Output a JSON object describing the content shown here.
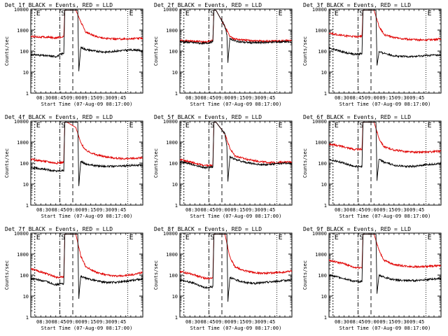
{
  "chart_data": [
    {
      "type": "line",
      "title": "Det 1f BLACK = Events, RED = LLD",
      "xlabel": "Start Time (07-Aug-09 08:17:00)",
      "ylabel": "Counts/sec",
      "yscale": "log",
      "ylim": [
        1,
        10000
      ],
      "x_ticks": [
        "08:30",
        "08:45",
        "09:00",
        "09:15",
        "09:30",
        "09:45"
      ],
      "y_ticks": [
        "1",
        "10",
        "100",
        "1000",
        "10000"
      ],
      "markers": [
        "E",
        "S",
        "E"
      ],
      "series": [
        {
          "name": "Events",
          "color": "#000000",
          "x": [
            0,
            15,
            25,
            33,
            34,
            36,
            45,
            47,
            48,
            50,
            55,
            65,
            75,
            85,
            95,
            105,
            112
          ],
          "y": [
            70,
            60,
            55,
            80,
            9000,
            9000,
            9000,
            9000,
            10,
            150,
            120,
            100,
            90,
            100,
            110,
            115,
            100
          ]
        },
        {
          "name": "LLD",
          "color": "#e00000",
          "x": [
            0,
            15,
            25,
            33,
            34,
            36,
            45,
            50,
            55,
            65,
            75,
            85,
            95,
            105,
            112
          ],
          "y": [
            500,
            460,
            430,
            480,
            9000,
            9000,
            9000,
            2500,
            800,
            500,
            400,
            380,
            380,
            400,
            420
          ]
        }
      ]
    },
    {
      "type": "line",
      "title": "Det 2f BLACK = Events, RED = LLD",
      "xlabel": "Start Time (07-Aug-09 08:17:00)",
      "ylabel": "Counts/sec",
      "yscale": "log",
      "ylim": [
        1,
        10000
      ],
      "x_ticks": [
        "08:30",
        "08:45",
        "09:00",
        "09:15",
        "09:30",
        "09:45"
      ],
      "y_ticks": [
        "1",
        "10",
        "100",
        "1000",
        "10000"
      ],
      "markers": [
        "E",
        "S",
        "E"
      ],
      "series": [
        {
          "name": "Events",
          "color": "#000000",
          "x": [
            0,
            15,
            25,
            33,
            34,
            36,
            45,
            47,
            48,
            50,
            55,
            65,
            75,
            85,
            95,
            105,
            112
          ],
          "y": [
            280,
            250,
            230,
            280,
            9000,
            9000,
            1500,
            600,
            30,
            400,
            300,
            260,
            250,
            260,
            270,
            280,
            260
          ]
        },
        {
          "name": "LLD",
          "color": "#e00000",
          "x": [
            0,
            15,
            25,
            33,
            34,
            36,
            45,
            50,
            55,
            65,
            75,
            85,
            95,
            105,
            112
          ],
          "y": [
            320,
            290,
            270,
            320,
            9000,
            9000,
            1500,
            500,
            380,
            330,
            310,
            300,
            300,
            310,
            320
          ]
        }
      ]
    },
    {
      "type": "line",
      "title": "Det 3f BLACK = Events, RED = LLD",
      "xlabel": "Start Time (07-Aug-09 08:17:00)",
      "ylabel": "Counts/sec",
      "yscale": "log",
      "ylim": [
        1,
        10000
      ],
      "x_ticks": [
        "08:30",
        "08:45",
        "09:00",
        "09:15",
        "09:30",
        "09:45"
      ],
      "y_ticks": [
        "1",
        "10",
        "100",
        "1000",
        "10000"
      ],
      "markers": [
        "E",
        "S",
        "E"
      ],
      "series": [
        {
          "name": "Events",
          "color": "#000000",
          "x": [
            0,
            15,
            25,
            33,
            34,
            36,
            45,
            47,
            48,
            50,
            55,
            65,
            75,
            85,
            95,
            105,
            112
          ],
          "y": [
            140,
            90,
            70,
            75,
            9000,
            9000,
            9000,
            9000,
            20,
            90,
            80,
            60,
            55,
            55,
            60,
            65,
            60
          ]
        },
        {
          "name": "LLD",
          "color": "#e00000",
          "x": [
            0,
            15,
            25,
            33,
            34,
            36,
            45,
            50,
            55,
            65,
            75,
            85,
            95,
            105,
            112
          ],
          "y": [
            700,
            550,
            480,
            520,
            9000,
            9000,
            9000,
            1500,
            600,
            450,
            380,
            350,
            340,
            360,
            380
          ]
        }
      ]
    },
    {
      "type": "line",
      "title": "Det 4f BLACK = Events, RED = LLD",
      "xlabel": "Start Time (07-Aug-09 08:17:00)",
      "ylabel": "Counts/sec",
      "yscale": "log",
      "ylim": [
        1,
        10000
      ],
      "x_ticks": [
        "08:30",
        "08:45",
        "09:00",
        "09:15",
        "09:30",
        "09:45"
      ],
      "y_ticks": [
        "1",
        "10",
        "100",
        "1000",
        "10000"
      ],
      "markers": [
        "E",
        "S",
        "E"
      ],
      "series": [
        {
          "name": "Events",
          "color": "#000000",
          "x": [
            0,
            15,
            25,
            33,
            34,
            36,
            45,
            47,
            48,
            50,
            55,
            65,
            75,
            85,
            95,
            105,
            112
          ],
          "y": [
            60,
            50,
            42,
            45,
            9000,
            9000,
            9000,
            9000,
            8,
            120,
            90,
            75,
            70,
            70,
            75,
            80,
            75
          ]
        },
        {
          "name": "LLD",
          "color": "#e00000",
          "x": [
            0,
            15,
            25,
            33,
            34,
            36,
            45,
            50,
            55,
            65,
            75,
            85,
            95,
            105,
            112
          ],
          "y": [
            150,
            120,
            100,
            110,
            9000,
            9000,
            5000,
            900,
            400,
            250,
            200,
            170,
            160,
            170,
            180
          ]
        }
      ]
    },
    {
      "type": "line",
      "title": "Det 5f BLACK = Events, RED = LLD",
      "xlabel": "Start Time (07-Aug-09 08:17:00)",
      "ylabel": "Counts/sec",
      "yscale": "log",
      "ylim": [
        1,
        10000
      ],
      "x_ticks": [
        "08:30",
        "08:45",
        "09:00",
        "09:15",
        "09:30",
        "09:45"
      ],
      "y_ticks": [
        "1",
        "10",
        "100",
        "1000",
        "10000"
      ],
      "markers": [
        "E",
        "S",
        "E"
      ],
      "series": [
        {
          "name": "Events",
          "color": "#000000",
          "x": [
            0,
            15,
            25,
            33,
            34,
            36,
            45,
            47,
            48,
            50,
            55,
            65,
            75,
            85,
            95,
            105,
            112
          ],
          "y": [
            120,
            80,
            60,
            65,
            9000,
            9000,
            2500,
            600,
            12,
            200,
            150,
            110,
            90,
            85,
            90,
            100,
            95
          ]
        },
        {
          "name": "LLD",
          "color": "#e00000",
          "x": [
            0,
            15,
            25,
            33,
            34,
            36,
            45,
            50,
            55,
            65,
            75,
            85,
            95,
            105,
            112
          ],
          "y": [
            150,
            100,
            75,
            80,
            9000,
            9000,
            2500,
            500,
            220,
            160,
            130,
            110,
            105,
            110,
            115
          ]
        }
      ]
    },
    {
      "type": "line",
      "title": "Det 6f BLACK = Events, RED = LLD",
      "xlabel": "Start Time (07-Aug-09 08:17:00)",
      "ylabel": "Counts/sec",
      "yscale": "log",
      "ylim": [
        1,
        10000
      ],
      "x_ticks": [
        "08:30",
        "08:45",
        "09:00",
        "09:15",
        "09:30",
        "09:45"
      ],
      "y_ticks": [
        "1",
        "10",
        "100",
        "1000",
        "10000"
      ],
      "markers": [
        "E",
        "S",
        "E"
      ],
      "series": [
        {
          "name": "Events",
          "color": "#000000",
          "x": [
            0,
            15,
            25,
            33,
            34,
            36,
            45,
            47,
            48,
            50,
            55,
            65,
            75,
            85,
            95,
            105,
            112
          ],
          "y": [
            150,
            100,
            70,
            70,
            9000,
            9000,
            9000,
            9000,
            15,
            150,
            110,
            80,
            70,
            70,
            80,
            90,
            95
          ]
        },
        {
          "name": "LLD",
          "color": "#e00000",
          "x": [
            0,
            15,
            25,
            33,
            34,
            36,
            45,
            50,
            55,
            65,
            75,
            85,
            95,
            105,
            112
          ],
          "y": [
            800,
            600,
            450,
            450,
            9000,
            9000,
            9000,
            1500,
            600,
            420,
            360,
            330,
            330,
            350,
            380
          ]
        }
      ]
    },
    {
      "type": "line",
      "title": "Det 7f BLACK = Events, RED = LLD",
      "xlabel": "Start Time (07-Aug-09 08:17:00)",
      "ylabel": "Counts/sec",
      "yscale": "log",
      "ylim": [
        1,
        10000
      ],
      "x_ticks": [
        "08:30",
        "08:45",
        "09:00",
        "09:15",
        "09:30",
        "09:45"
      ],
      "y_ticks": [
        "1",
        "10",
        "100",
        "1000",
        "10000"
      ],
      "markers": [
        "E",
        "S",
        "E"
      ],
      "series": [
        {
          "name": "Events",
          "color": "#000000",
          "x": [
            0,
            15,
            25,
            33,
            34,
            36,
            45,
            47,
            48,
            50,
            55,
            65,
            75,
            85,
            95,
            105,
            112
          ],
          "y": [
            70,
            50,
            35,
            40,
            9000,
            9000,
            9000,
            9000,
            8,
            90,
            70,
            55,
            45,
            45,
            50,
            60,
            65
          ]
        },
        {
          "name": "LLD",
          "color": "#e00000",
          "x": [
            0,
            15,
            25,
            33,
            34,
            36,
            45,
            50,
            55,
            65,
            75,
            85,
            95,
            105,
            112
          ],
          "y": [
            200,
            120,
            80,
            80,
            9000,
            9000,
            9000,
            800,
            250,
            140,
            100,
            90,
            95,
            110,
            140
          ]
        }
      ]
    },
    {
      "type": "line",
      "title": "Det 8f BLACK = Events, RED = LLD",
      "xlabel": "Start Time (07-Aug-09 08:17:00)",
      "ylabel": "Counts/sec",
      "yscale": "log",
      "ylim": [
        1,
        10000
      ],
      "x_ticks": [
        "08:30",
        "08:45",
        "09:00",
        "09:15",
        "09:30",
        "09:45"
      ],
      "y_ticks": [
        "1",
        "10",
        "100",
        "1000",
        "10000"
      ],
      "markers": [
        "E",
        "S",
        "E"
      ],
      "series": [
        {
          "name": "Events",
          "color": "#000000",
          "x": [
            0,
            15,
            25,
            33,
            34,
            36,
            45,
            47,
            48,
            50,
            55,
            65,
            75,
            85,
            95,
            105,
            112
          ],
          "y": [
            60,
            40,
            25,
            28,
            9000,
            9000,
            9000,
            9000,
            6,
            80,
            60,
            45,
            40,
            45,
            50,
            55,
            60
          ]
        },
        {
          "name": "LLD",
          "color": "#e00000",
          "x": [
            0,
            15,
            25,
            33,
            34,
            36,
            45,
            50,
            55,
            65,
            75,
            85,
            95,
            105,
            112
          ],
          "y": [
            150,
            100,
            70,
            75,
            9000,
            9000,
            9000,
            700,
            250,
            160,
            130,
            120,
            130,
            140,
            160
          ]
        }
      ]
    },
    {
      "type": "line",
      "title": "Det 9f BLACK = Events, RED = LLD",
      "xlabel": "Start Time (07-Aug-09 08:17:00)",
      "ylabel": "Counts/sec",
      "yscale": "log",
      "ylim": [
        1,
        10000
      ],
      "x_ticks": [
        "08:30",
        "08:45",
        "09:00",
        "09:15",
        "09:30",
        "09:45"
      ],
      "y_ticks": [
        "1",
        "10",
        "100",
        "1000",
        "10000"
      ],
      "markers": [
        "E",
        "S",
        "E"
      ],
      "series": [
        {
          "name": "Events",
          "color": "#000000",
          "x": [
            0,
            15,
            25,
            33,
            34,
            36,
            45,
            47,
            48,
            50,
            55,
            65,
            75,
            85,
            95,
            105,
            112
          ],
          "y": [
            100,
            70,
            50,
            50,
            9000,
            9000,
            9000,
            9000,
            12,
            100,
            80,
            60,
            55,
            55,
            60,
            65,
            70
          ]
        },
        {
          "name": "LLD",
          "color": "#e00000",
          "x": [
            0,
            15,
            25,
            33,
            34,
            36,
            45,
            50,
            55,
            65,
            75,
            85,
            95,
            105,
            112
          ],
          "y": [
            500,
            350,
            230,
            230,
            9000,
            9000,
            9000,
            1500,
            500,
            320,
            270,
            250,
            250,
            270,
            300
          ]
        }
      ]
    }
  ]
}
